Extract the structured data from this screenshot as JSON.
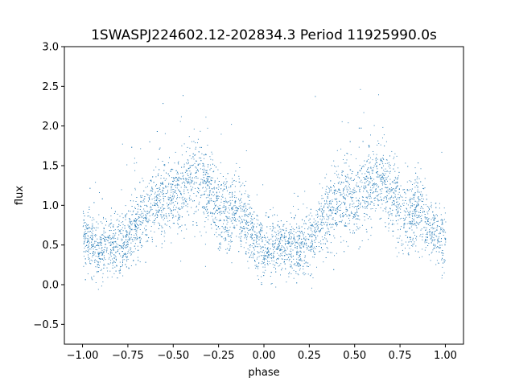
{
  "chart_data": {
    "type": "scatter",
    "title": "1SWASPJ224602.12-202834.3 Period 11925990.0s",
    "xlabel": "phase",
    "ylabel": "flux",
    "xlim": [
      -1.1,
      1.1
    ],
    "ylim": [
      -0.75,
      3.0
    ],
    "xticks": [
      -1.0,
      -0.75,
      -0.5,
      -0.25,
      0.0,
      0.25,
      0.5,
      0.75,
      1.0
    ],
    "xtick_labels": [
      "−1.00",
      "−0.75",
      "−0.50",
      "−0.25",
      "0.00",
      "0.25",
      "0.50",
      "0.75",
      "1.00"
    ],
    "yticks": [
      -0.5,
      0.0,
      0.5,
      1.0,
      1.5,
      2.0,
      2.5,
      3.0
    ],
    "ytick_labels": [
      "−0.5",
      "0.0",
      "0.5",
      "1.0",
      "1.5",
      "2.0",
      "2.5",
      "3.0"
    ],
    "grid": false,
    "color": "#1f77b4",
    "series": [
      {
        "x": [
          -1.0,
          -0.95,
          -0.9,
          -0.85,
          -0.8,
          -0.75,
          -0.7,
          -0.65,
          -0.6,
          -0.55,
          -0.5,
          -0.45,
          -0.4,
          -0.35,
          -0.3,
          -0.25,
          -0.2,
          -0.15,
          -0.1,
          -0.05,
          0.0,
          0.05,
          0.1,
          0.15,
          0.2,
          0.25,
          0.3,
          0.35,
          0.4,
          0.45,
          0.5,
          0.55,
          0.6,
          0.65,
          0.7,
          0.75,
          0.8,
          0.85,
          0.9,
          0.95,
          1.0
        ],
        "y": [
          0.6,
          0.5,
          0.45,
          0.5,
          0.45,
          0.6,
          0.75,
          0.9,
          1.05,
          1.1,
          1.05,
          1.15,
          1.3,
          1.35,
          1.15,
          0.9,
          0.85,
          0.95,
          0.8,
          0.55,
          0.45,
          0.5,
          0.45,
          0.5,
          0.45,
          0.6,
          0.75,
          0.9,
          1.05,
          1.1,
          1.05,
          1.15,
          1.3,
          1.35,
          1.15,
          0.9,
          0.85,
          0.95,
          0.8,
          0.6,
          0.55
        ]
      }
    ]
  }
}
